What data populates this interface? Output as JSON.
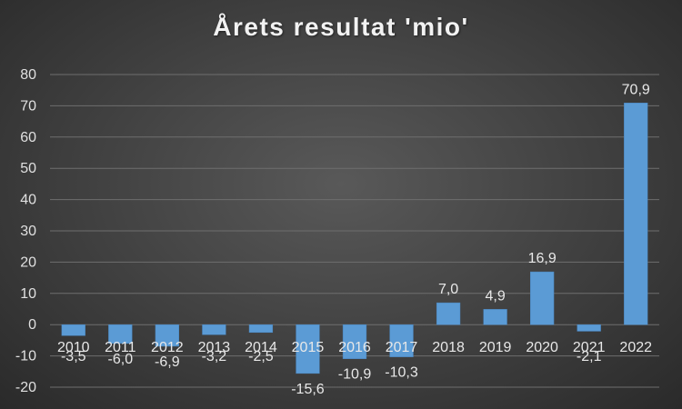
{
  "chart_data": {
    "type": "bar",
    "title": "Årets resultat 'mio'",
    "xlabel": "",
    "ylabel": "",
    "categories": [
      "2010",
      "2011",
      "2012",
      "2013",
      "2014",
      "2015",
      "2016",
      "2017",
      "2018",
      "2019",
      "2020",
      "2021",
      "2022"
    ],
    "values": [
      -3.5,
      -6.0,
      -6.9,
      -3.2,
      -2.5,
      -15.6,
      -10.9,
      -10.3,
      7.0,
      4.9,
      16.9,
      -2.1,
      70.9
    ],
    "data_labels": [
      "-3,5",
      "-6,0",
      "-6,9",
      "-3,2",
      "-2,5",
      "-15,6",
      "-10,9",
      "-10,3",
      "7,0",
      "4,9",
      "16,9",
      "-2,1",
      "70,9"
    ],
    "ylim": [
      -20,
      80
    ],
    "yticks": [
      -20,
      -10,
      0,
      10,
      20,
      30,
      40,
      50,
      60,
      70,
      80
    ],
    "grid": true,
    "legend": "none",
    "bar_color": "#5b9bd5",
    "background_color": "#404040"
  }
}
